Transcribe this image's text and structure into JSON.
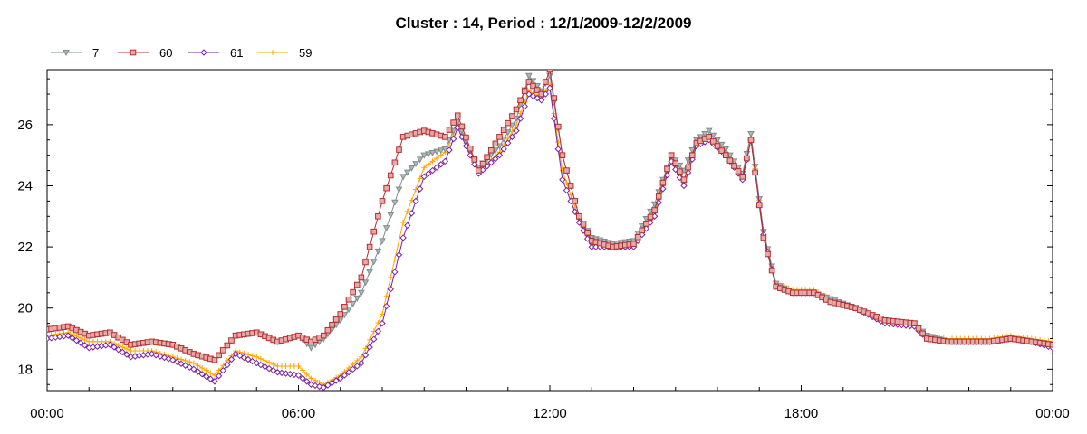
{
  "chart_data": {
    "type": "line",
    "title": "Cluster : 14, Period : 12/1/2009-12/2/2009",
    "xlabel": "",
    "ylabel": "",
    "x_unit": "hours",
    "xlim": [
      0,
      24
    ],
    "ylim": [
      17.3,
      27.8
    ],
    "x_tick_values": [
      0,
      6,
      12,
      18,
      24
    ],
    "x_tick_labels": [
      "00:00",
      "06:00",
      "12:00",
      "18:00",
      "00:00"
    ],
    "y_ticks": [
      "18",
      "20",
      "22",
      "24",
      "26"
    ],
    "grid": true,
    "legend_position": "top-left",
    "series": [
      {
        "name": "7",
        "color": "#7f8c8d",
        "marker": "triangle-down",
        "points": [
          [
            0,
            19.3
          ],
          [
            0.5,
            19.4
          ],
          [
            1,
            19.1
          ],
          [
            1.5,
            19.2
          ],
          [
            2,
            18.8
          ],
          [
            2.5,
            18.9
          ],
          [
            3,
            18.8
          ],
          [
            3.5,
            18.5
          ],
          [
            4,
            18.3
          ],
          [
            4.5,
            19.1
          ],
          [
            5,
            19.2
          ],
          [
            5.5,
            18.9
          ],
          [
            6,
            19.1
          ],
          [
            6.3,
            18.7
          ],
          [
            6.6,
            19.0
          ],
          [
            7,
            19.6
          ],
          [
            7.5,
            20.5
          ],
          [
            8,
            22.2
          ],
          [
            8.5,
            24.3
          ],
          [
            9,
            25.0
          ],
          [
            9.5,
            25.2
          ],
          [
            9.8,
            26.1
          ],
          [
            10.3,
            24.6
          ],
          [
            10.8,
            25.3
          ],
          [
            11.2,
            26.2
          ],
          [
            11.5,
            27.6
          ],
          [
            11.8,
            27.1
          ],
          [
            12,
            27.6
          ],
          [
            12.3,
            25.0
          ],
          [
            12.7,
            23.0
          ],
          [
            13,
            22.3
          ],
          [
            13.5,
            22.1
          ],
          [
            14,
            22.2
          ],
          [
            14.5,
            23.4
          ],
          [
            14.9,
            25.0
          ],
          [
            15.2,
            24.5
          ],
          [
            15.5,
            25.5
          ],
          [
            15.8,
            25.8
          ],
          [
            16.2,
            25.2
          ],
          [
            16.6,
            24.4
          ],
          [
            16.8,
            25.7
          ],
          [
            17.1,
            22.5
          ],
          [
            17.4,
            20.8
          ],
          [
            17.8,
            20.5
          ],
          [
            18.3,
            20.5
          ],
          [
            18.7,
            20.3
          ],
          [
            19.3,
            20.0
          ],
          [
            20,
            19.6
          ],
          [
            20.7,
            19.5
          ],
          [
            21,
            19.1
          ],
          [
            21.5,
            18.9
          ],
          [
            22,
            18.9
          ],
          [
            22.5,
            18.9
          ],
          [
            23,
            19.0
          ],
          [
            23.5,
            18.9
          ],
          [
            24,
            18.8
          ]
        ]
      },
      {
        "name": "60",
        "color": "#b03030",
        "marker": "square",
        "points": [
          [
            0,
            19.3
          ],
          [
            0.5,
            19.4
          ],
          [
            1,
            19.1
          ],
          [
            1.5,
            19.2
          ],
          [
            2,
            18.8
          ],
          [
            2.5,
            18.9
          ],
          [
            3,
            18.8
          ],
          [
            3.5,
            18.5
          ],
          [
            4,
            18.3
          ],
          [
            4.5,
            19.1
          ],
          [
            5,
            19.2
          ],
          [
            5.5,
            18.9
          ],
          [
            6,
            19.1
          ],
          [
            6.3,
            18.9
          ],
          [
            6.6,
            19.1
          ],
          [
            7,
            19.8
          ],
          [
            7.5,
            21.0
          ],
          [
            8,
            23.5
          ],
          [
            8.5,
            25.6
          ],
          [
            9,
            25.8
          ],
          [
            9.5,
            25.6
          ],
          [
            9.8,
            26.3
          ],
          [
            10.3,
            24.5
          ],
          [
            10.8,
            25.6
          ],
          [
            11.2,
            26.5
          ],
          [
            11.5,
            27.4
          ],
          [
            11.8,
            27.0
          ],
          [
            12,
            27.8
          ],
          [
            12.3,
            25.0
          ],
          [
            12.7,
            23.0
          ],
          [
            13,
            22.2
          ],
          [
            13.5,
            22.0
          ],
          [
            14,
            22.1
          ],
          [
            14.5,
            23.2
          ],
          [
            14.9,
            25.0
          ],
          [
            15.2,
            24.2
          ],
          [
            15.5,
            25.4
          ],
          [
            15.8,
            25.6
          ],
          [
            16.2,
            25.0
          ],
          [
            16.6,
            24.3
          ],
          [
            16.8,
            25.5
          ],
          [
            17.1,
            22.3
          ],
          [
            17.4,
            20.7
          ],
          [
            17.8,
            20.5
          ],
          [
            18.3,
            20.5
          ],
          [
            18.7,
            20.2
          ],
          [
            19.3,
            20.0
          ],
          [
            20,
            19.6
          ],
          [
            20.7,
            19.5
          ],
          [
            21,
            19.0
          ],
          [
            21.5,
            18.9
          ],
          [
            22,
            18.9
          ],
          [
            22.5,
            18.9
          ],
          [
            23,
            19.0
          ],
          [
            23.5,
            18.9
          ],
          [
            24,
            18.8
          ]
        ]
      },
      {
        "name": "61",
        "color": "#7b1fa2",
        "marker": "diamond",
        "points": [
          [
            0,
            19.0
          ],
          [
            0.5,
            19.1
          ],
          [
            1,
            18.7
          ],
          [
            1.5,
            18.8
          ],
          [
            2,
            18.4
          ],
          [
            2.5,
            18.5
          ],
          [
            3,
            18.3
          ],
          [
            3.5,
            18.0
          ],
          [
            4,
            17.6
          ],
          [
            4.5,
            18.5
          ],
          [
            5,
            18.2
          ],
          [
            5.5,
            17.9
          ],
          [
            6,
            17.8
          ],
          [
            6.3,
            17.5
          ],
          [
            6.6,
            17.4
          ],
          [
            7,
            17.7
          ],
          [
            7.5,
            18.2
          ],
          [
            8,
            19.5
          ],
          [
            8.5,
            22.3
          ],
          [
            9,
            24.3
          ],
          [
            9.5,
            24.8
          ],
          [
            9.8,
            25.9
          ],
          [
            10.3,
            24.4
          ],
          [
            10.8,
            25.0
          ],
          [
            11.2,
            25.8
          ],
          [
            11.5,
            27.0
          ],
          [
            11.8,
            26.8
          ],
          [
            12,
            27.2
          ],
          [
            12.3,
            24.2
          ],
          [
            12.7,
            22.8
          ],
          [
            13,
            22.0
          ],
          [
            13.5,
            22.0
          ],
          [
            14,
            22.0
          ],
          [
            14.5,
            23.0
          ],
          [
            14.9,
            24.8
          ],
          [
            15.2,
            24.0
          ],
          [
            15.5,
            25.3
          ],
          [
            15.8,
            25.5
          ],
          [
            16.2,
            25.0
          ],
          [
            16.6,
            24.2
          ],
          [
            16.8,
            25.5
          ],
          [
            17.1,
            22.4
          ],
          [
            17.4,
            20.7
          ],
          [
            17.8,
            20.5
          ],
          [
            18.3,
            20.5
          ],
          [
            18.7,
            20.2
          ],
          [
            19.3,
            20.0
          ],
          [
            20,
            19.5
          ],
          [
            20.7,
            19.4
          ],
          [
            21,
            19.0
          ],
          [
            21.5,
            18.9
          ],
          [
            22,
            18.9
          ],
          [
            22.5,
            18.9
          ],
          [
            23,
            19.0
          ],
          [
            23.5,
            18.9
          ],
          [
            24,
            18.7
          ]
        ]
      },
      {
        "name": "59",
        "color": "#ffa500",
        "marker": "plus",
        "points": [
          [
            0,
            19.1
          ],
          [
            0.5,
            19.2
          ],
          [
            1,
            18.9
          ],
          [
            1.5,
            18.9
          ],
          [
            2,
            18.6
          ],
          [
            2.5,
            18.6
          ],
          [
            3,
            18.4
          ],
          [
            3.5,
            18.2
          ],
          [
            4,
            17.8
          ],
          [
            4.5,
            18.6
          ],
          [
            5,
            18.4
          ],
          [
            5.5,
            18.1
          ],
          [
            6,
            18.1
          ],
          [
            6.3,
            17.7
          ],
          [
            6.6,
            17.5
          ],
          [
            7,
            17.8
          ],
          [
            7.5,
            18.4
          ],
          [
            8,
            19.8
          ],
          [
            8.5,
            22.8
          ],
          [
            9,
            24.6
          ],
          [
            9.5,
            25.1
          ],
          [
            9.8,
            26.0
          ],
          [
            10.3,
            24.5
          ],
          [
            10.8,
            25.1
          ],
          [
            11.2,
            26.0
          ],
          [
            11.5,
            27.1
          ],
          [
            11.8,
            26.9
          ],
          [
            12,
            27.3
          ],
          [
            12.3,
            24.5
          ],
          [
            12.7,
            22.9
          ],
          [
            13,
            22.1
          ],
          [
            13.5,
            22.0
          ],
          [
            14,
            22.1
          ],
          [
            14.5,
            23.1
          ],
          [
            14.9,
            24.9
          ],
          [
            15.2,
            24.1
          ],
          [
            15.5,
            25.4
          ],
          [
            15.8,
            25.6
          ],
          [
            16.2,
            25.1
          ],
          [
            16.6,
            24.3
          ],
          [
            16.8,
            25.6
          ],
          [
            17.1,
            22.5
          ],
          [
            17.4,
            20.8
          ],
          [
            17.8,
            20.6
          ],
          [
            18.3,
            20.6
          ],
          [
            18.7,
            20.3
          ],
          [
            19.3,
            20.0
          ],
          [
            20,
            19.6
          ],
          [
            20.7,
            19.5
          ],
          [
            21,
            19.1
          ],
          [
            21.5,
            19.0
          ],
          [
            22,
            19.0
          ],
          [
            22.5,
            19.0
          ],
          [
            23,
            19.1
          ],
          [
            23.5,
            19.0
          ],
          [
            24,
            18.9
          ]
        ]
      }
    ]
  }
}
